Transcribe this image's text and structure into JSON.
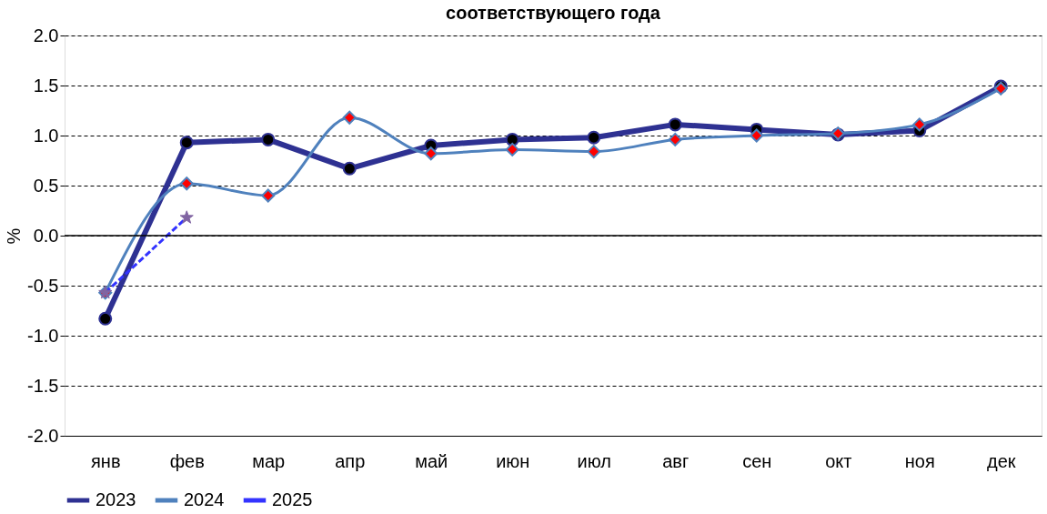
{
  "chart_data": {
    "type": "line",
    "title": "соответствующего года",
    "ylabel": "%",
    "categories": [
      "янв",
      "фев",
      "мар",
      "апр",
      "май",
      "июн",
      "июл",
      "авг",
      "сен",
      "окт",
      "ноя",
      "дек"
    ],
    "series": [
      {
        "name": "2023",
        "color": "#2e3192",
        "marker": "circle",
        "values": [
          -0.83,
          0.93,
          0.96,
          0.67,
          0.9,
          0.96,
          0.98,
          1.11,
          1.06,
          1.01,
          1.05,
          1.49
        ]
      },
      {
        "name": "2024",
        "color": "#4f81bd",
        "marker": "diamond",
        "values": [
          -0.57,
          0.52,
          0.4,
          1.18,
          0.82,
          0.86,
          0.84,
          0.96,
          1.0,
          1.02,
          1.11,
          1.47
        ]
      },
      {
        "name": "2025",
        "color": "#3333ff",
        "marker": "star",
        "line_style": "dashed",
        "values": [
          -0.57,
          0.18,
          null,
          null,
          null,
          null,
          null,
          null,
          null,
          null,
          null,
          null
        ]
      }
    ],
    "ylim": [
      -2.0,
      2.0
    ],
    "yticks": [
      {
        "value": -2,
        "label": "-2.0"
      },
      {
        "value": -1.5,
        "label": "-1.5"
      },
      {
        "value": -1,
        "label": "-1.0"
      },
      {
        "value": -0.5,
        "label": "-0.5"
      },
      {
        "value": 0,
        "label": "0.0"
      },
      {
        "value": 0.5,
        "label": "0.5"
      },
      {
        "value": 1,
        "label": "1.0"
      },
      {
        "value": 1.5,
        "label": "1.5"
      },
      {
        "value": 2,
        "label": "2.0"
      }
    ],
    "grid": "y",
    "legend": "bottom"
  }
}
